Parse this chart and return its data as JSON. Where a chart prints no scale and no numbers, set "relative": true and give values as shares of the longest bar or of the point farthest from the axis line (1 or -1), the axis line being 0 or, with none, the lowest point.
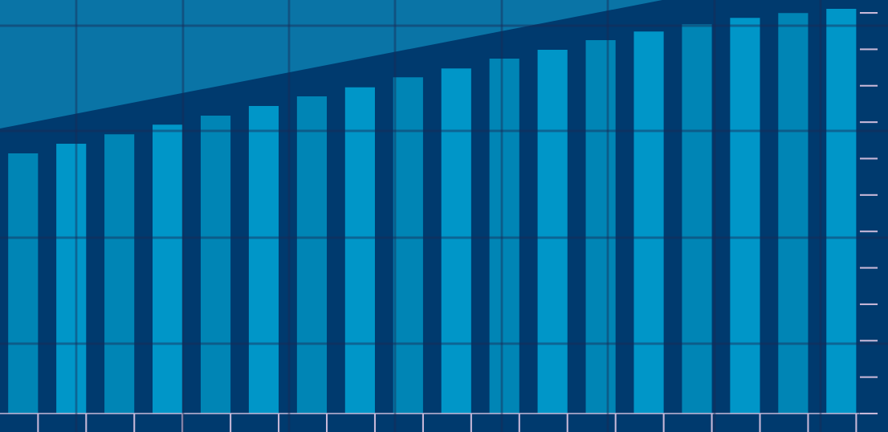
{
  "chart_data": {
    "type": "bar",
    "relative": true,
    "grid": true,
    "categories": [
      null,
      null,
      null,
      null,
      null,
      null,
      null,
      null,
      null,
      null,
      null,
      null,
      null,
      null,
      null,
      null,
      null,
      null
    ],
    "values": [
      0.643,
      0.667,
      0.69,
      0.714,
      0.736,
      0.76,
      0.784,
      0.806,
      0.831,
      0.853,
      0.877,
      0.899,
      0.923,
      0.944,
      0.962,
      0.978,
      0.99,
      1
    ],
    "colors": [
      "#0085b5",
      "#0096c8",
      "#0085b5",
      "#0096c8",
      "#0085b5",
      "#0096c8",
      "#0085b5",
      "#0096c8",
      "#0085b5",
      "#0096c8",
      "#0085b5",
      "#0096c8",
      "#0085b5",
      "#0096c8",
      "#0085b5",
      "#0096c8",
      "#0085b5",
      "#0096c8"
    ]
  }
}
